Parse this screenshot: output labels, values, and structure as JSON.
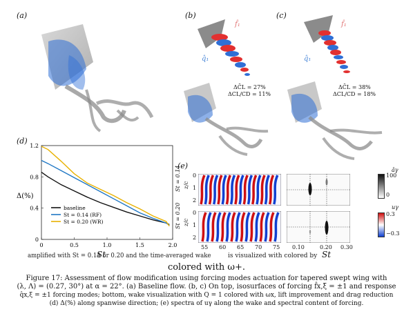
{
  "panels": {
    "a": "(a)",
    "b": "(b)",
    "c": "(c)",
    "d": "(d)",
    "e": "(e)"
  },
  "panel_b": {
    "f_label": "f̂₁",
    "q_label": "q̂₁",
    "cl_text": "ΔC̄L = 27%",
    "cld_text": "ΔCL/CD = 11%"
  },
  "panel_c": {
    "f_label": "f̂₁",
    "q_label": "q̂₁",
    "cl_text": "ΔC̄L = 38%",
    "cld_text": "ΔCL/CD = 18%"
  },
  "colors": {
    "baseline": "#111111",
    "st014": "#1f77c4",
    "st020": "#e8b100",
    "wake_blue": "#2f6fd6",
    "wake_red": "#e23030",
    "gray_iso": "#8c8c8c"
  },
  "chart_data": {
    "type": "line",
    "ylabel": "Δ(%)",
    "xlim": [
      0,
      2.0
    ],
    "ylim": [
      0,
      1.2
    ],
    "xticks": [
      "0",
      "0.5",
      "1.0",
      "1.5",
      "2.0"
    ],
    "yticks": [
      "0",
      "0.4",
      "0.8",
      "1.2"
    ],
    "series": [
      {
        "name": "baseline",
        "color": "#111111",
        "x": [
          0,
          0.1,
          0.3,
          0.5,
          0.7,
          0.9,
          1.1,
          1.3,
          1.5,
          1.7,
          1.9,
          1.95
        ],
        "y": [
          0.86,
          0.8,
          0.7,
          0.62,
          0.54,
          0.47,
          0.41,
          0.35,
          0.3,
          0.25,
          0.21,
          0.19
        ]
      },
      {
        "name": "St = 0.14 (RF)",
        "color": "#1f77c4",
        "x": [
          0,
          0.1,
          0.3,
          0.5,
          0.7,
          0.9,
          1.1,
          1.3,
          1.5,
          1.7,
          1.9,
          1.95
        ],
        "y": [
          1.01,
          0.97,
          0.88,
          0.79,
          0.7,
          0.61,
          0.52,
          0.43,
          0.34,
          0.27,
          0.21,
          0.18
        ]
      },
      {
        "name": "St = 0.20 (WR)",
        "color": "#e8b100",
        "x": [
          0,
          0.1,
          0.3,
          0.5,
          0.7,
          0.9,
          1.1,
          1.3,
          1.5,
          1.7,
          1.9,
          1.95
        ],
        "y": [
          1.19,
          1.15,
          1.0,
          0.84,
          0.72,
          0.64,
          0.56,
          0.47,
          0.39,
          0.3,
          0.23,
          0.17
        ]
      }
    ]
  },
  "panel_e": {
    "row1_label": "St = 0.14",
    "row2_label": "St = 0.20",
    "zc_label": "z/c",
    "y_ticks": [
      "0",
      "1",
      "2"
    ],
    "x1_ticks": [
      "55",
      "60",
      "65",
      "70",
      "75"
    ],
    "x2_ticks": [
      "0.10",
      "0.20",
      "0.30"
    ],
    "cb1_label": "âγ",
    "cb1_ticks": [
      "100",
      "0"
    ],
    "cb2_label": "uγ",
    "cb2_ticks": [
      "0.3",
      "−0.3"
    ],
    "axis_label_St": "St",
    "axis_label_x": "x"
  },
  "overlap_text": {
    "left_line": "amplified with St = 0.14 or 0.20 and the time-averaged wake",
    "right_line": "is visualized with colored by"
  },
  "caption": {
    "title_line": "colored with ω+.",
    "fig_line": "Figure 17: Assessment of flow modification using forcing modes actuation for tapered swept wing with",
    "line2": "(λ, Λ) = (0.27, 30°) at α = 22°. (a) Baseline flow. (b, c) On top, isosurfaces of forcing f̂x,ξ = ±1 and response",
    "line3": "q̂x,ξ = ±1 forcing modes; bottom, wake visualization with Q = 1 colored with ωx, lift improvement and drag reduction",
    "line4": "(d) Δ(%) along spanwise direction; (e) spectra of uγ along the wake and spectral content of forcing."
  }
}
